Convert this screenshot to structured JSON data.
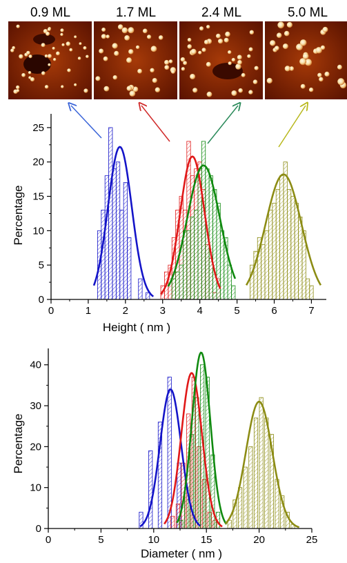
{
  "panels": [
    {
      "label": "0.9 ML",
      "color": "#3a64d8",
      "pattern": "blobs"
    },
    {
      "label": "1.7 ML",
      "color": "#d02a2a",
      "pattern": "dense"
    },
    {
      "label": "2.4 ML",
      "color": "#2a8a5a",
      "pattern": "mixed"
    },
    {
      "label": "5.0 ML",
      "color": "#b7b71a",
      "pattern": "large"
    }
  ],
  "colors": {
    "blue": "#1414c8",
    "red": "#e01818",
    "green": "#108a10",
    "olive": "#8c8c14",
    "afm_dark": "#3a0800",
    "afm_mid": "#a83a08",
    "afm_light": "#f2d7a0"
  },
  "chart_data": [
    {
      "type": "bar",
      "xlabel": "Height ( nm )",
      "ylabel": "Percentage",
      "xlim": [
        0,
        7.4
      ],
      "ylim": [
        0,
        27
      ],
      "xticks": [
        0,
        1,
        2,
        3,
        4,
        5,
        6,
        7
      ],
      "yticks": [
        0,
        5,
        10,
        15,
        20,
        25
      ],
      "bar_width": 0.1,
      "series": [
        {
          "color": "blue",
          "x": [
            1.3,
            1.4,
            1.5,
            1.6,
            1.7,
            1.8,
            1.9,
            2.0,
            2.1,
            2.4,
            2.6
          ],
          "values": [
            10,
            13,
            18,
            25,
            19,
            20,
            13,
            17,
            9,
            3,
            1
          ],
          "fit": {
            "mu": 1.85,
            "sigma": 0.32,
            "amp": 22.2,
            "range": [
              1.15,
              2.75
            ]
          }
        },
        {
          "color": "red",
          "x": [
            3.0,
            3.1,
            3.2,
            3.3,
            3.4,
            3.5,
            3.6,
            3.7,
            3.8,
            3.9,
            4.0,
            4.1,
            4.2,
            4.3,
            4.4,
            4.5
          ],
          "values": [
            2,
            4,
            5,
            9,
            13,
            15,
            13,
            23,
            18,
            19,
            20,
            16,
            8,
            6,
            1,
            3
          ],
          "fit": {
            "mu": 3.8,
            "sigma": 0.33,
            "amp": 20.8,
            "range": [
              2.95,
              4.55
            ]
          }
        },
        {
          "color": "green",
          "x": [
            3.3,
            3.4,
            3.5,
            3.6,
            3.7,
            3.8,
            3.9,
            4.0,
            4.1,
            4.2,
            4.3,
            4.4,
            4.5,
            4.6,
            4.7,
            4.8,
            4.9
          ],
          "values": [
            3,
            4,
            5,
            10,
            10,
            12,
            13,
            19,
            23,
            19,
            18,
            16,
            14,
            10,
            9,
            5,
            2
          ],
          "fit": {
            "mu": 4.1,
            "sigma": 0.44,
            "amp": 19.5,
            "range": [
              3.15,
              4.95
            ]
          }
        },
        {
          "color": "olive",
          "x": [
            5.4,
            5.5,
            5.6,
            5.7,
            5.8,
            5.9,
            6.0,
            6.1,
            6.2,
            6.3,
            6.4,
            6.5,
            6.6,
            6.7,
            6.8,
            6.9,
            7.0
          ],
          "values": [
            5,
            7,
            9,
            8,
            10,
            13,
            14,
            16,
            18,
            20,
            16,
            15,
            14,
            12,
            10,
            3,
            2
          ],
          "fit": {
            "mu": 6.25,
            "sigma": 0.48,
            "amp": 18.2,
            "range": [
              5.25,
              7.25
            ]
          }
        }
      ]
    },
    {
      "type": "bar",
      "xlabel": "Diameter ( nm )",
      "ylabel": "Percentage",
      "xlim": [
        0,
        25
      ],
      "ylim": [
        0,
        44
      ],
      "xticks": [
        0,
        5,
        10,
        15,
        20,
        25
      ],
      "yticks": [
        0,
        10,
        20,
        30,
        40
      ],
      "bar_width": 0.35,
      "series": [
        {
          "color": "blue",
          "x": [
            8.8,
            9.7,
            10.6,
            11.5,
            12.4
          ],
          "values": [
            4,
            19,
            26,
            37,
            16
          ],
          "fit": {
            "mu": 11.6,
            "sigma": 1.0,
            "amp": 34,
            "range": [
              8.7,
              14.4
            ]
          }
        },
        {
          "color": "red",
          "x": [
            11.8,
            12.3,
            12.8,
            13.3,
            13.8,
            14.3,
            14.8,
            15.3,
            15.8
          ],
          "values": [
            3,
            6,
            16,
            28,
            37,
            20,
            12,
            4,
            2
          ],
          "fit": {
            "mu": 13.6,
            "sigma": 0.98,
            "amp": 38,
            "range": [
              11.0,
              16.5
            ]
          }
        },
        {
          "color": "green",
          "x": [
            12.6,
            13.1,
            13.6,
            14.1,
            14.6,
            15.1,
            15.6,
            16.1
          ],
          "values": [
            2,
            10,
            23,
            32,
            40,
            37,
            18,
            4
          ],
          "fit": {
            "mu": 14.5,
            "sigma": 0.88,
            "amp": 43,
            "range": [
              12.2,
              16.9
            ]
          }
        },
        {
          "color": "olive",
          "x": [
            17.2,
            17.7,
            18.2,
            18.7,
            19.2,
            19.7,
            20.2,
            20.7,
            21.2,
            21.7,
            22.2,
            22.7,
            23.2
          ],
          "values": [
            2,
            7,
            10,
            15,
            20,
            27,
            32,
            27,
            23,
            12,
            8,
            4,
            1
          ],
          "fit": {
            "mu": 20.0,
            "sigma": 1.25,
            "amp": 31,
            "range": [
              16.8,
              23.8
            ]
          }
        }
      ]
    }
  ]
}
